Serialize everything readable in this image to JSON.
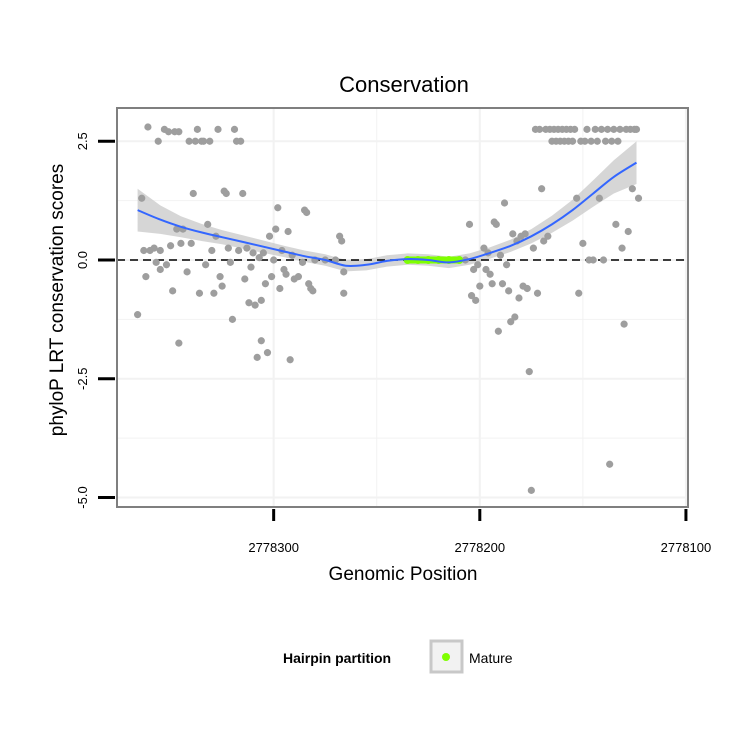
{
  "chart_data": {
    "type": "scatter",
    "title": "Conservation",
    "xlabel": "Genomic Position",
    "ylabel": "phyloP LRT conservation scores",
    "x_reversed": true,
    "xlim": [
      2778376,
      2778099
    ],
    "ylim": [
      -5.2,
      3.2
    ],
    "x_ticks": [
      2778300,
      2778200,
      2778100
    ],
    "x_tick_labels": [
      "2778300",
      "2778200",
      "2778100"
    ],
    "y_ticks": [
      2.5,
      0.0,
      -2.5,
      -5.0
    ],
    "y_tick_labels": [
      "2.5",
      "0.0",
      "-2.5",
      "-5.0"
    ],
    "reference_line": {
      "y": 0,
      "style": "dashed"
    },
    "legend": {
      "title": "Hairpin partition",
      "entries": [
        "Mature"
      ],
      "position": "bottom"
    },
    "colors": {
      "points": "#9e9e9e",
      "mature": "#7fff00",
      "smooth": "#3366ff",
      "ribbon": "#c8c8c8",
      "panel_border": "#7f7f7f",
      "grid": "#f2f2f2"
    },
    "mature_range": [
      2778235,
      2778210
    ],
    "series": [
      {
        "name": "scores",
        "points": [
          [
            2778366,
            -1.15
          ],
          [
            2778364,
            1.3
          ],
          [
            2778363,
            0.2
          ],
          [
            2778362,
            -0.35
          ],
          [
            2778361,
            2.8
          ],
          [
            2778360,
            0.2
          ],
          [
            2778358,
            0.25
          ],
          [
            2778357,
            -0.05
          ],
          [
            2778356,
            2.5
          ],
          [
            2778355,
            0.2
          ],
          [
            2778355,
            -0.2
          ],
          [
            2778353,
            2.75
          ],
          [
            2778352,
            -0.1
          ],
          [
            2778351,
            2.7
          ],
          [
            2778350,
            0.3
          ],
          [
            2778349,
            -0.65
          ],
          [
            2778348,
            2.7
          ],
          [
            2778347,
            0.65
          ],
          [
            2778346,
            2.7
          ],
          [
            2778346,
            -1.75
          ],
          [
            2778345,
            0.35
          ],
          [
            2778344,
            0.65
          ],
          [
            2778342,
            -0.25
          ],
          [
            2778341,
            2.5
          ],
          [
            2778340,
            0.35
          ],
          [
            2778339,
            1.4
          ],
          [
            2778338,
            2.5
          ],
          [
            2778337,
            2.75
          ],
          [
            2778336,
            -0.7
          ],
          [
            2778335,
            2.5
          ],
          [
            2778334,
            2.5
          ],
          [
            2778333,
            -0.1
          ],
          [
            2778332,
            0.75
          ],
          [
            2778331,
            2.5
          ],
          [
            2778330,
            0.2
          ],
          [
            2778329,
            -0.7
          ],
          [
            2778328,
            0.5
          ],
          [
            2778327,
            2.75
          ],
          [
            2778326,
            -0.35
          ],
          [
            2778325,
            -0.55
          ],
          [
            2778324,
            1.45
          ],
          [
            2778323,
            1.4
          ],
          [
            2778322,
            0.25
          ],
          [
            2778321,
            -0.05
          ],
          [
            2778320,
            -1.25
          ],
          [
            2778319,
            2.75
          ],
          [
            2778318,
            2.5
          ],
          [
            2778317,
            0.2
          ],
          [
            2778316,
            2.5
          ],
          [
            2778315,
            1.4
          ],
          [
            2778314,
            -0.4
          ],
          [
            2778313,
            0.25
          ],
          [
            2778312,
            -0.9
          ],
          [
            2778311,
            -0.15
          ],
          [
            2778310,
            0.15
          ],
          [
            2778309,
            -0.95
          ],
          [
            2778308,
            -2.05
          ],
          [
            2778307,
            0.05
          ],
          [
            2778306,
            -0.85
          ],
          [
            2778306,
            -1.7
          ],
          [
            2778305,
            0.15
          ],
          [
            2778304,
            -0.5
          ],
          [
            2778303,
            -1.95
          ],
          [
            2778302,
            0.5
          ],
          [
            2778301,
            -0.35
          ],
          [
            2778300,
            0.0
          ],
          [
            2778299,
            0.65
          ],
          [
            2778298,
            1.1
          ],
          [
            2778297,
            -0.6
          ],
          [
            2778296,
            0.2
          ],
          [
            2778295,
            -0.2
          ],
          [
            2778294,
            -0.3
          ],
          [
            2778293,
            0.6
          ],
          [
            2778292,
            -2.1
          ],
          [
            2778291,
            0.1
          ],
          [
            2778290,
            -0.4
          ],
          [
            2778288,
            -0.35
          ],
          [
            2778286,
            -0.05
          ],
          [
            2778285,
            1.05
          ],
          [
            2778284,
            1.0
          ],
          [
            2778283,
            -0.5
          ],
          [
            2778282,
            -0.6
          ],
          [
            2778281,
            -0.65
          ],
          [
            2778280,
            0.0
          ],
          [
            2778275,
            0.0
          ],
          [
            2778270,
            0.0
          ],
          [
            2778268,
            0.5
          ],
          [
            2778267,
            0.4
          ],
          [
            2778266,
            -0.25
          ],
          [
            2778266,
            -0.7
          ],
          [
            2778210,
            0.0
          ],
          [
            2778207,
            0.0
          ],
          [
            2778205,
            0.75
          ],
          [
            2778204,
            -0.75
          ],
          [
            2778203,
            -0.2
          ],
          [
            2778202,
            -0.85
          ],
          [
            2778201,
            -0.1
          ],
          [
            2778200,
            -0.55
          ],
          [
            2778198,
            0.25
          ],
          [
            2778197,
            -0.2
          ],
          [
            2778196,
            0.15
          ],
          [
            2778195,
            -0.3
          ],
          [
            2778194,
            -0.5
          ],
          [
            2778193,
            0.8
          ],
          [
            2778192,
            0.75
          ],
          [
            2778191,
            -1.5
          ],
          [
            2778190,
            0.1
          ],
          [
            2778189,
            -0.5
          ],
          [
            2778188,
            1.2
          ],
          [
            2778187,
            -0.1
          ],
          [
            2778186,
            -0.65
          ],
          [
            2778185,
            -1.3
          ],
          [
            2778184,
            0.55
          ],
          [
            2778183,
            -1.2
          ],
          [
            2778182,
            0.4
          ],
          [
            2778181,
            -0.8
          ],
          [
            2778180,
            0.5
          ],
          [
            2778179,
            -0.55
          ],
          [
            2778178,
            0.55
          ],
          [
            2778177,
            -0.6
          ],
          [
            2778176,
            -2.35
          ],
          [
            2778175,
            -4.85
          ],
          [
            2778174,
            0.25
          ],
          [
            2778173,
            2.75
          ],
          [
            2778172,
            -0.7
          ],
          [
            2778171,
            2.75
          ],
          [
            2778170,
            1.5
          ],
          [
            2778169,
            0.4
          ],
          [
            2778168,
            2.75
          ],
          [
            2778167,
            0.5
          ],
          [
            2778166,
            2.75
          ],
          [
            2778165,
            2.5
          ],
          [
            2778164,
            2.75
          ],
          [
            2778163,
            2.5
          ],
          [
            2778162,
            2.75
          ],
          [
            2778161,
            2.5
          ],
          [
            2778160,
            2.75
          ],
          [
            2778159,
            2.5
          ],
          [
            2778158,
            2.75
          ],
          [
            2778157,
            2.5
          ],
          [
            2778156,
            2.75
          ],
          [
            2778155,
            2.5
          ],
          [
            2778154,
            2.75
          ],
          [
            2778153,
            1.3
          ],
          [
            2778152,
            -0.7
          ],
          [
            2778151,
            2.5
          ],
          [
            2778150,
            0.35
          ],
          [
            2778149,
            2.5
          ],
          [
            2778148,
            2.75
          ],
          [
            2778147,
            0.0
          ],
          [
            2778146,
            2.5
          ],
          [
            2778145,
            0.0
          ],
          [
            2778144,
            2.75
          ],
          [
            2778143,
            2.5
          ],
          [
            2778142,
            1.3
          ],
          [
            2778141,
            2.75
          ],
          [
            2778140,
            0.0
          ],
          [
            2778139,
            2.5
          ],
          [
            2778138,
            2.75
          ],
          [
            2778137,
            -4.3
          ],
          [
            2778136,
            2.5
          ],
          [
            2778135,
            2.75
          ],
          [
            2778134,
            0.75
          ],
          [
            2778133,
            2.5
          ],
          [
            2778132,
            2.75
          ],
          [
            2778131,
            0.25
          ],
          [
            2778130,
            -1.35
          ],
          [
            2778129,
            2.75
          ],
          [
            2778128,
            0.6
          ],
          [
            2778127,
            2.75
          ],
          [
            2778126,
            1.5
          ],
          [
            2778125,
            2.75
          ],
          [
            2778124,
            2.75
          ],
          [
            2778123,
            1.3
          ]
        ]
      },
      {
        "name": "Mature",
        "points": [
          [
            2778235,
            0.0
          ],
          [
            2778230,
            0.0
          ],
          [
            2778225,
            0.0
          ],
          [
            2778220,
            0.0
          ],
          [
            2778215,
            0.0
          ],
          [
            2778210,
            0.0
          ]
        ]
      }
    ],
    "smooth": {
      "x": [
        2778366,
        2778355,
        2778345,
        2778335,
        2778325,
        2778315,
        2778305,
        2778295,
        2778285,
        2778275,
        2778265,
        2778255,
        2778245,
        2778235,
        2778225,
        2778215,
        2778205,
        2778195,
        2778185,
        2778175,
        2778165,
        2778155,
        2778145,
        2778135,
        2778124
      ],
      "y": [
        1.05,
        0.85,
        0.7,
        0.58,
        0.48,
        0.38,
        0.28,
        0.18,
        0.08,
        0.0,
        -0.12,
        -0.1,
        -0.02,
        0.02,
        0.0,
        -0.05,
        0.02,
        0.15,
        0.3,
        0.5,
        0.75,
        1.05,
        1.4,
        1.75,
        2.05
      ],
      "se": [
        0.45,
        0.3,
        0.22,
        0.18,
        0.15,
        0.14,
        0.13,
        0.12,
        0.12,
        0.12,
        0.12,
        0.12,
        0.12,
        0.12,
        0.12,
        0.12,
        0.12,
        0.12,
        0.13,
        0.15,
        0.18,
        0.22,
        0.28,
        0.35,
        0.45
      ]
    }
  }
}
